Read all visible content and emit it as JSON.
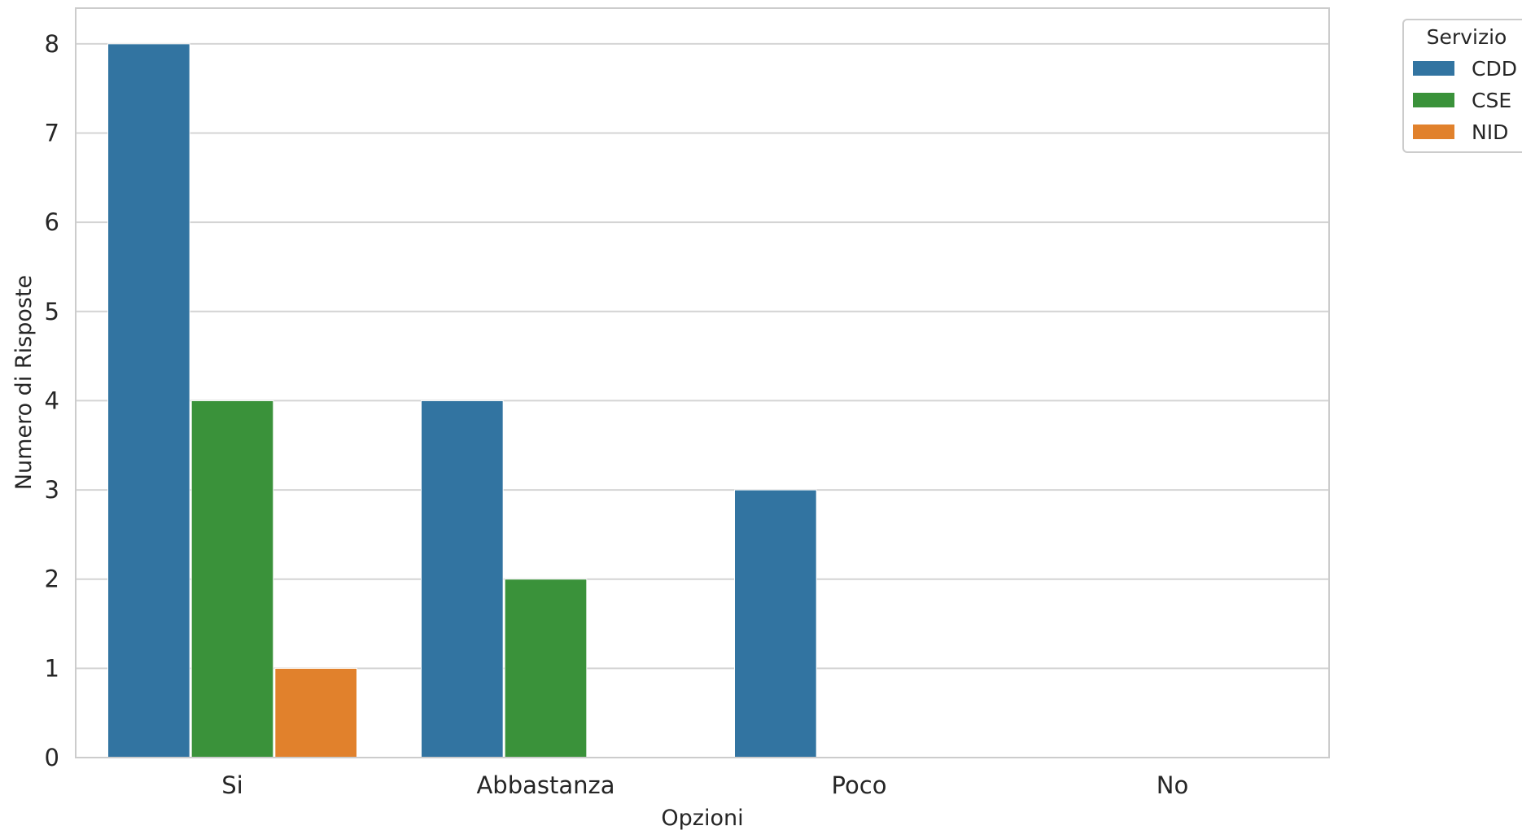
{
  "chart_data": {
    "type": "bar",
    "title": "",
    "xlabel": "Opzioni",
    "ylabel": "Numero di Risposte",
    "categories": [
      "Si",
      "Abbastanza",
      "Poco",
      "No"
    ],
    "ylim": [
      0,
      8.4
    ],
    "yticks": [
      0,
      1,
      2,
      3,
      4,
      5,
      6,
      7,
      8
    ],
    "grid": true,
    "legend_title": "Servizio",
    "legend_position": "outside-top-right",
    "series": [
      {
        "name": "CDD",
        "color": "#3274a1",
        "values": [
          8,
          4,
          3,
          0
        ]
      },
      {
        "name": "CSE",
        "color": "#3a923a",
        "values": [
          4,
          2,
          0,
          0
        ]
      },
      {
        "name": "NID",
        "color": "#e1812c",
        "values": [
          1,
          0,
          0,
          0
        ]
      }
    ]
  }
}
